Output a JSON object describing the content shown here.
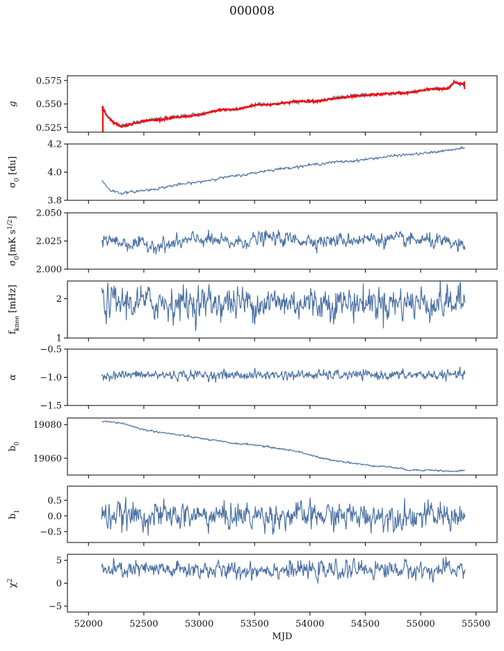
{
  "title": "000008",
  "colors": {
    "series": "#4c72a4",
    "model": "#ff0000",
    "axis": "#000000"
  },
  "chart_data": [
    {
      "type": "line",
      "id": "g",
      "ylabel": "g",
      "ylim": [
        0.52,
        0.58
      ],
      "yticks": [
        0.525,
        0.55,
        0.575
      ],
      "yticklabels": [
        "0.525",
        "0.550",
        "0.575"
      ],
      "series": [
        {
          "name": "data",
          "color": "#4c72a4",
          "noise": 0.0008,
          "x": [
            52120,
            52140,
            52170,
            52230,
            52300,
            52500,
            52700,
            52900,
            53000,
            53200,
            53350,
            53500,
            53700,
            53900,
            54050,
            54250,
            54500,
            54700,
            54900,
            55100,
            55250,
            55300,
            55400
          ],
          "y": [
            0.543,
            0.545,
            0.538,
            0.53,
            0.527,
            0.532,
            0.535,
            0.538,
            0.539,
            0.544,
            0.545,
            0.549,
            0.55,
            0.553,
            0.553,
            0.557,
            0.56,
            0.561,
            0.562,
            0.566,
            0.567,
            0.572,
            0.572
          ]
        },
        {
          "name": "model",
          "color": "#ff0000",
          "noise": 0.0005,
          "x": [
            52120,
            52140,
            52170,
            52230,
            52300,
            52500,
            52700,
            52900,
            53000,
            53200,
            53350,
            53500,
            53700,
            53900,
            54050,
            54250,
            54500,
            54700,
            54900,
            55100,
            55250,
            55300,
            55400
          ],
          "y": [
            0.546,
            0.543,
            0.537,
            0.53,
            0.526,
            0.532,
            0.534,
            0.537,
            0.538,
            0.544,
            0.544,
            0.549,
            0.55,
            0.553,
            0.553,
            0.556,
            0.559,
            0.561,
            0.562,
            0.566,
            0.566,
            0.573,
            0.571
          ]
        }
      ]
    },
    {
      "type": "line",
      "id": "sigma0-du",
      "ylabel": "σ₀ [du]",
      "ylim": [
        3.8,
        4.2
      ],
      "yticks": [
        3.8,
        4.0,
        4.2
      ],
      "yticklabels": [
        "3.8",
        "4.0",
        "4.2"
      ],
      "series": [
        {
          "name": "data",
          "color": "#4c72a4",
          "noise": 0.004,
          "x": [
            52120,
            52200,
            52300,
            52400,
            52600,
            52800,
            53000,
            53200,
            53400,
            53600,
            53800,
            54000,
            54200,
            54400,
            54600,
            54800,
            55000,
            55200,
            55400
          ],
          "y": [
            3.94,
            3.87,
            3.85,
            3.86,
            3.88,
            3.91,
            3.93,
            3.96,
            3.98,
            4.01,
            4.03,
            4.05,
            4.07,
            4.08,
            4.1,
            4.12,
            4.13,
            4.15,
            4.17
          ]
        }
      ]
    },
    {
      "type": "line",
      "id": "sigma0-mk",
      "ylabel": "σ₀[mK s¹ᐟ²]",
      "ylim": [
        2.0,
        2.05
      ],
      "yticks": [
        2.0,
        2.025,
        2.05
      ],
      "yticklabels": [
        "2.000",
        "2.025",
        "2.050"
      ],
      "series": [
        {
          "name": "data",
          "color": "#4c72a4",
          "noise": 0.003,
          "x": [
            52120,
            52400,
            52700,
            53000,
            53300,
            53600,
            53900,
            54200,
            54500,
            54800,
            55100,
            55400
          ],
          "y": [
            2.027,
            2.022,
            2.021,
            2.027,
            2.023,
            2.028,
            2.026,
            2.025,
            2.027,
            2.026,
            2.025,
            2.02
          ]
        }
      ]
    },
    {
      "type": "line",
      "id": "fknee",
      "ylabel": "f_knee [mHz]",
      "ylim": [
        1.0,
        2.45
      ],
      "yticks": [
        1,
        2
      ],
      "yticklabels": [
        "1",
        "2"
      ],
      "series": [
        {
          "name": "data",
          "color": "#4c72a4",
          "noise": 0.2,
          "x": [
            52120,
            55400
          ],
          "y": [
            1.9,
            1.9
          ]
        }
      ]
    },
    {
      "type": "line",
      "id": "alpha",
      "ylabel": "α",
      "ylim": [
        -1.5,
        -0.5
      ],
      "yticks": [
        -1.5,
        -1.0,
        -0.5
      ],
      "yticklabels": [
        "−1.5",
        "−1.0",
        "−0.5"
      ],
      "series": [
        {
          "name": "data",
          "color": "#4c72a4",
          "noise": 0.04,
          "x": [
            52120,
            55400
          ],
          "y": [
            -0.96,
            -0.96
          ]
        }
      ]
    },
    {
      "type": "line",
      "id": "b0",
      "ylabel": "b₀",
      "ylim": [
        19050,
        19084
      ],
      "yticks": [
        19060,
        19080
      ],
      "yticklabels": [
        "19060",
        "19080"
      ],
      "series": [
        {
          "name": "data",
          "color": "#4c72a4",
          "noise": 0.25,
          "x": [
            52120,
            52300,
            52500,
            52700,
            52900,
            53100,
            53300,
            53500,
            53700,
            53900,
            54100,
            54300,
            54500,
            54700,
            54900,
            55100,
            55300,
            55400
          ],
          "y": [
            19082,
            19081,
            19077,
            19075,
            19073,
            19071,
            19069,
            19068,
            19066,
            19064,
            19060,
            19058,
            19056,
            19055,
            19053,
            19053,
            19052,
            19053
          ]
        }
      ]
    },
    {
      "type": "line",
      "id": "b1",
      "ylabel": "b₁",
      "ylim": [
        -0.85,
        0.95
      ],
      "yticks": [
        -0.5,
        0.0,
        0.5
      ],
      "yticklabels": [
        "−0.5",
        "0.0",
        "0.5"
      ],
      "series": [
        {
          "name": "data",
          "color": "#4c72a4",
          "noise": 0.2,
          "x": [
            52120,
            55400
          ],
          "y": [
            0.0,
            0.0
          ]
        }
      ]
    },
    {
      "type": "line",
      "id": "chi2",
      "ylabel": "χ²",
      "ylim": [
        -6.3,
        6.3
      ],
      "yticks": [
        -5,
        0,
        5
      ],
      "yticklabels": [
        "−5",
        "0",
        "5"
      ],
      "series": [
        {
          "name": "data",
          "color": "#4c72a4",
          "noise": 0.9,
          "x": [
            52120,
            52400,
            52700,
            53000,
            53300,
            53600,
            53900,
            54200,
            54500,
            54800,
            55100,
            55400
          ],
          "y": [
            2.6,
            3.0,
            2.8,
            3.0,
            2.6,
            3.1,
            2.8,
            2.7,
            3.1,
            3.0,
            2.7,
            3.2
          ]
        }
      ]
    }
  ],
  "xaxis": {
    "label": "MJD",
    "xlim": [
      51810,
      55690
    ],
    "ticks": [
      52000,
      52500,
      53000,
      53500,
      54000,
      54500,
      55000,
      55500
    ],
    "ticklabels": [
      "52000",
      "52500",
      "53000",
      "53500",
      "54000",
      "54500",
      "55000",
      "55500"
    ]
  }
}
